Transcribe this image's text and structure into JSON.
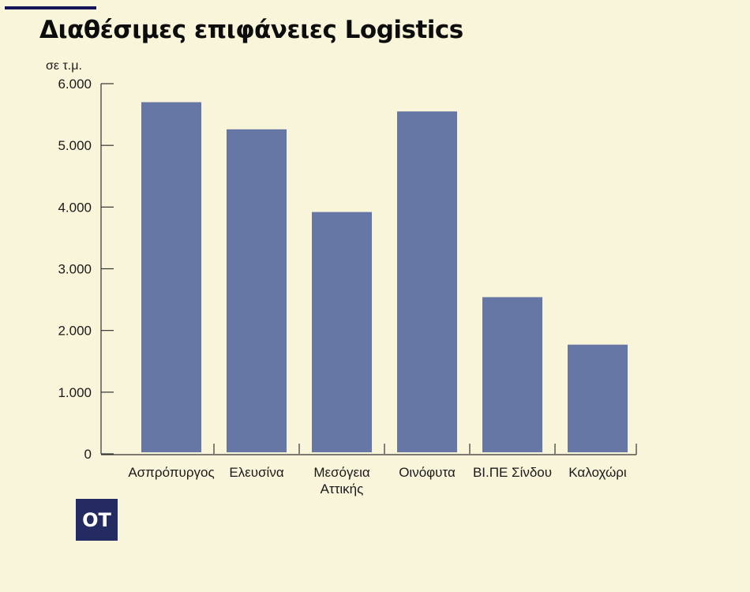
{
  "header": {
    "title": "Διαθέσιμες επιφάνειες Logistics"
  },
  "logo_text": "OT",
  "colors": {
    "background": "#f8f5da",
    "bar": "#6777a5",
    "accent": "#14145a",
    "logo_bg": "#232b62"
  },
  "chart_data": {
    "type": "bar",
    "title": "Διαθέσιμες επιφάνειες Logistics",
    "ylabel": "σε τ.μ.",
    "xlabel": "",
    "categories": [
      [
        "Ασπρόπυργος"
      ],
      [
        "Ελευσίνα"
      ],
      [
        "Μεσόγεια",
        "Αττικής"
      ],
      [
        "Οινόφυτα"
      ],
      [
        "ΒΙ.ΠΕ Σίνδου"
      ],
      [
        "Καλοχώρι"
      ]
    ],
    "values": [
      5700,
      5260,
      3920,
      5550,
      2540,
      1770
    ],
    "ylim": [
      0,
      6000
    ],
    "yticks": [
      0,
      1000,
      2000,
      3000,
      4000,
      5000,
      6000
    ],
    "ytick_labels": [
      "0",
      "1.000",
      "2.000",
      "3.000",
      "4.000",
      "5.000",
      "6.000"
    ],
    "grid": false
  }
}
